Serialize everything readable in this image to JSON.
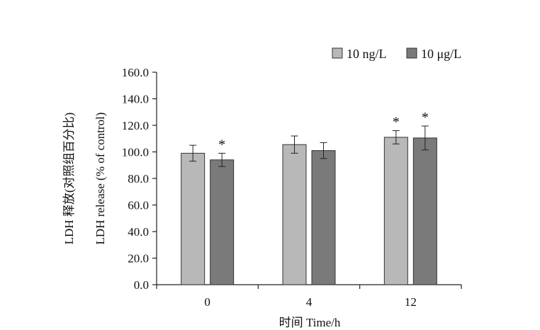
{
  "chart_data": {
    "type": "bar",
    "categories": [
      "0",
      "4",
      "12"
    ],
    "series": [
      {
        "name": "10 ng/L",
        "color": "#b8b8b8",
        "values": [
          99,
          105.5,
          111
        ],
        "errors": [
          6,
          6.5,
          5
        ],
        "significant": [
          false,
          false,
          true
        ]
      },
      {
        "name": "10 μg/L",
        "color": "#7a7a7a",
        "values": [
          94,
          101,
          110.5
        ],
        "errors": [
          5,
          6,
          9
        ],
        "significant": [
          true,
          false,
          true
        ]
      }
    ],
    "xlabel": "时间 Time/h",
    "ylabel_cn": "LDH 释放(对照组百分比)",
    "ylabel_en": "LDH release (% of control)",
    "ylim": [
      0,
      160
    ],
    "yticks": [
      "0.0",
      "20.0",
      "40.0",
      "60.0",
      "80.0",
      "100.0",
      "120.0",
      "140.0",
      "160.0"
    ],
    "significance_marker": "*",
    "grid": false,
    "legend_position": "top-right"
  }
}
